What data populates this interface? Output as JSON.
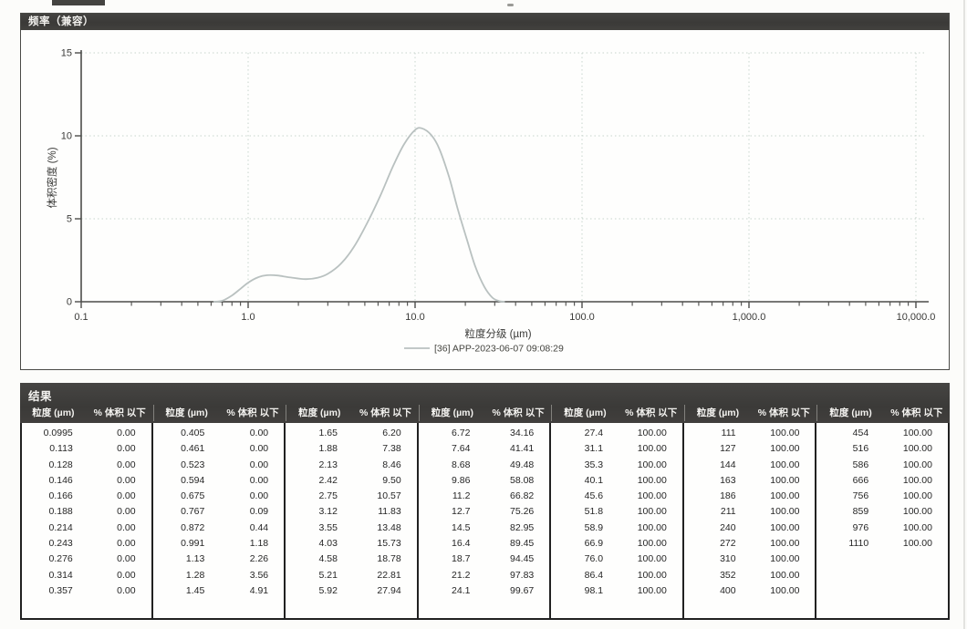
{
  "chart_panel": {
    "title": "频率（兼容）",
    "colors": {
      "curve": "#b9c1c0",
      "grid": "#c8d4cd",
      "axis": "#4c4c4a",
      "tick_text": "#3a3a38",
      "titlebar": "#3b3a38",
      "title_text": "#f3f2ef"
    }
  },
  "chart_data": {
    "type": "line",
    "title": "频率（兼容）",
    "xlabel": "粒度分级 (µm)",
    "ylabel": "体积密度 (%)",
    "x_scale": "log",
    "xlim": [
      0.1,
      10000
    ],
    "ylim": [
      0,
      15
    ],
    "x_ticks": [
      "0.1",
      "1.0",
      "10.0",
      "100.0",
      "1,000.0",
      "10,000.0"
    ],
    "x_tick_values": [
      0.1,
      1,
      10,
      100,
      1000,
      10000
    ],
    "y_ticks": [
      0,
      5,
      10,
      15
    ],
    "grid": "dotted",
    "legend_position": "bottom",
    "series": [
      {
        "name": "[36] APP-2023-06-07 09:08:29",
        "points": [
          [
            0.62,
            0
          ],
          [
            0.7,
            0.06
          ],
          [
            0.8,
            0.38
          ],
          [
            0.9,
            0.78
          ],
          [
            1.0,
            1.15
          ],
          [
            1.15,
            1.48
          ],
          [
            1.3,
            1.6
          ],
          [
            1.5,
            1.58
          ],
          [
            1.8,
            1.46
          ],
          [
            2.2,
            1.36
          ],
          [
            2.6,
            1.44
          ],
          [
            3.0,
            1.68
          ],
          [
            3.6,
            2.3
          ],
          [
            4.3,
            3.3
          ],
          [
            5.2,
            4.8
          ],
          [
            6.2,
            6.4
          ],
          [
            7.4,
            8.2
          ],
          [
            8.6,
            9.5
          ],
          [
            10.0,
            10.35
          ],
          [
            11.0,
            10.45
          ],
          [
            12.5,
            10.05
          ],
          [
            14.0,
            9.2
          ],
          [
            16.0,
            7.5
          ],
          [
            18.0,
            5.6
          ],
          [
            20.5,
            3.7
          ],
          [
            23.0,
            2.1
          ],
          [
            26.0,
            0.9
          ],
          [
            29.0,
            0.25
          ],
          [
            32.0,
            0.04
          ],
          [
            34.5,
            0
          ]
        ]
      }
    ]
  },
  "results": {
    "title": "结果",
    "col_size_label": "粒度 (µm)",
    "col_pct_label": "% 体积 以下",
    "groups": [
      {
        "rows": [
          [
            "0.0995",
            "0.00"
          ],
          [
            "0.113",
            "0.00"
          ],
          [
            "0.128",
            "0.00"
          ],
          [
            "0.146",
            "0.00"
          ],
          [
            "0.166",
            "0.00"
          ],
          [
            "0.188",
            "0.00"
          ],
          [
            "0.214",
            "0.00"
          ],
          [
            "0.243",
            "0.00"
          ],
          [
            "0.276",
            "0.00"
          ],
          [
            "0.314",
            "0.00"
          ],
          [
            "0.357",
            "0.00"
          ]
        ]
      },
      {
        "rows": [
          [
            "0.405",
            "0.00"
          ],
          [
            "0.461",
            "0.00"
          ],
          [
            "0.523",
            "0.00"
          ],
          [
            "0.594",
            "0.00"
          ],
          [
            "0.675",
            "0.00"
          ],
          [
            "0.767",
            "0.09"
          ],
          [
            "0.872",
            "0.44"
          ],
          [
            "0.991",
            "1.18"
          ],
          [
            "1.13",
            "2.26"
          ],
          [
            "1.28",
            "3.56"
          ],
          [
            "1.45",
            "4.91"
          ]
        ]
      },
      {
        "rows": [
          [
            "1.65",
            "6.20"
          ],
          [
            "1.88",
            "7.38"
          ],
          [
            "2.13",
            "8.46"
          ],
          [
            "2.42",
            "9.50"
          ],
          [
            "2.75",
            "10.57"
          ],
          [
            "3.12",
            "11.83"
          ],
          [
            "3.55",
            "13.48"
          ],
          [
            "4.03",
            "15.73"
          ],
          [
            "4.58",
            "18.78"
          ],
          [
            "5.21",
            "22.81"
          ],
          [
            "5.92",
            "27.94"
          ]
        ]
      },
      {
        "rows": [
          [
            "6.72",
            "34.16"
          ],
          [
            "7.64",
            "41.41"
          ],
          [
            "8.68",
            "49.48"
          ],
          [
            "9.86",
            "58.08"
          ],
          [
            "11.2",
            "66.82"
          ],
          [
            "12.7",
            "75.26"
          ],
          [
            "14.5",
            "82.95"
          ],
          [
            "16.4",
            "89.45"
          ],
          [
            "18.7",
            "94.45"
          ],
          [
            "21.2",
            "97.83"
          ],
          [
            "24.1",
            "99.67"
          ]
        ]
      },
      {
        "rows": [
          [
            "27.4",
            "100.00"
          ],
          [
            "31.1",
            "100.00"
          ],
          [
            "35.3",
            "100.00"
          ],
          [
            "40.1",
            "100.00"
          ],
          [
            "45.6",
            "100.00"
          ],
          [
            "51.8",
            "100.00"
          ],
          [
            "58.9",
            "100.00"
          ],
          [
            "66.9",
            "100.00"
          ],
          [
            "76.0",
            "100.00"
          ],
          [
            "86.4",
            "100.00"
          ],
          [
            "98.1",
            "100.00"
          ]
        ]
      },
      {
        "rows": [
          [
            "111",
            "100.00"
          ],
          [
            "127",
            "100.00"
          ],
          [
            "144",
            "100.00"
          ],
          [
            "163",
            "100.00"
          ],
          [
            "186",
            "100.00"
          ],
          [
            "211",
            "100.00"
          ],
          [
            "240",
            "100.00"
          ],
          [
            "272",
            "100.00"
          ],
          [
            "310",
            "100.00"
          ],
          [
            "352",
            "100.00"
          ],
          [
            "400",
            "100.00"
          ]
        ]
      },
      {
        "rows": [
          [
            "454",
            "100.00"
          ],
          [
            "516",
            "100.00"
          ],
          [
            "586",
            "100.00"
          ],
          [
            "666",
            "100.00"
          ],
          [
            "756",
            "100.00"
          ],
          [
            "859",
            "100.00"
          ],
          [
            "976",
            "100.00"
          ],
          [
            "1110",
            "100.00"
          ]
        ]
      }
    ]
  }
}
